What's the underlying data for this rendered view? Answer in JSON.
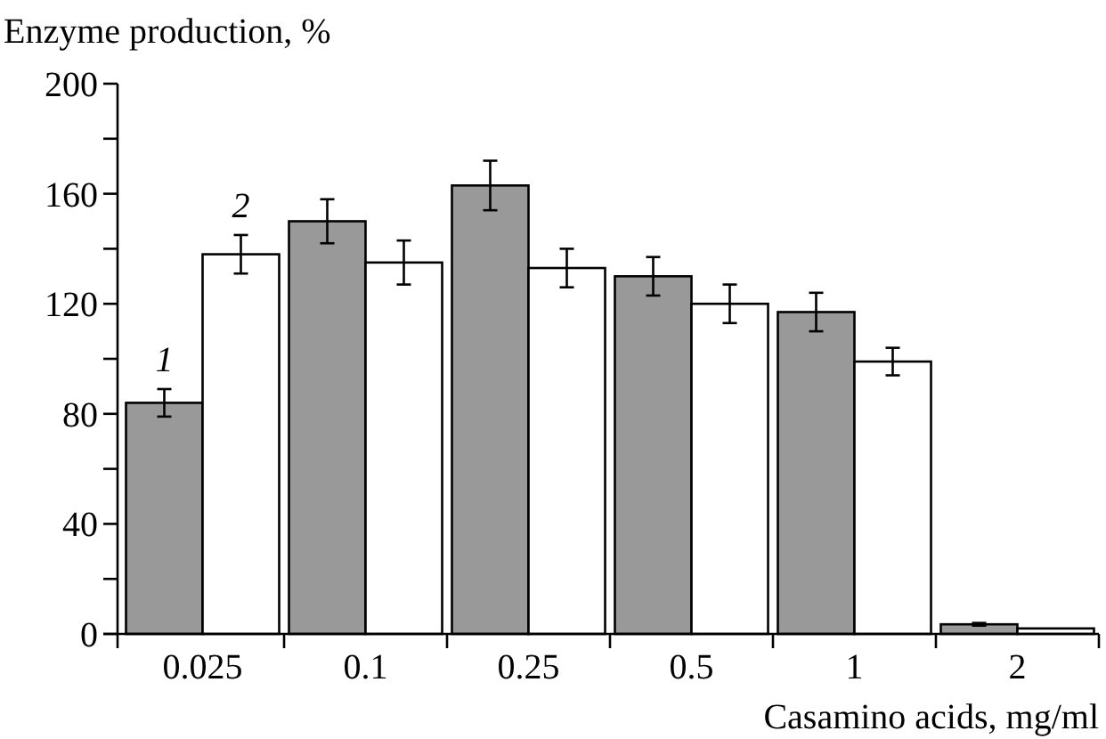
{
  "chart_data": {
    "type": "bar",
    "ylabel": "Enzyme production, %",
    "xlabel": "Casamino acids, mg/ml",
    "categories": [
      "0.025",
      "0.1",
      "0.25",
      "0.5",
      "1",
      "2"
    ],
    "series": [
      {
        "name": "1",
        "color": "#999999",
        "values": [
          84,
          150,
          163,
          130,
          117,
          3.5
        ],
        "errors": [
          5,
          8,
          9,
          7,
          7,
          0.5
        ]
      },
      {
        "name": "2",
        "color": "#ffffff",
        "values": [
          138,
          135,
          133,
          120,
          99,
          2
        ],
        "errors": [
          7,
          8,
          7,
          7,
          5,
          null
        ]
      }
    ],
    "ylim": [
      0,
      200
    ],
    "yticks": [
      0,
      {
        "value": 20,
        "label": null
      },
      40,
      {
        "value": 60,
        "label": null
      },
      80,
      {
        "value": 100,
        "label": null
      },
      120,
      {
        "value": 140,
        "label": null
      },
      160,
      {
        "value": 180,
        "label": null
      },
      200
    ],
    "grid": false
  }
}
